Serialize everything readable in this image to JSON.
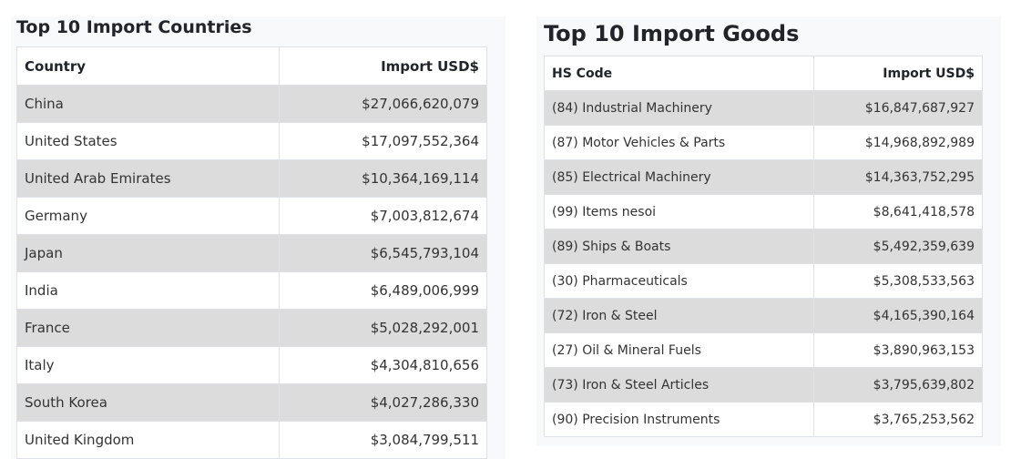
{
  "countries": {
    "title": "Top 10 Import Countries",
    "col_country": "Country",
    "col_value": "Import USD$",
    "rows": [
      {
        "name": "China",
        "value": "$27,066,620,079"
      },
      {
        "name": "United States",
        "value": "$17,097,552,364"
      },
      {
        "name": "United Arab Emirates",
        "value": "$10,364,169,114"
      },
      {
        "name": "Germany",
        "value": "$7,003,812,674"
      },
      {
        "name": "Japan",
        "value": "$6,545,793,104"
      },
      {
        "name": "India",
        "value": "$6,489,006,999"
      },
      {
        "name": "France",
        "value": "$5,028,292,001"
      },
      {
        "name": "Italy",
        "value": "$4,304,810,656"
      },
      {
        "name": "South Korea",
        "value": "$4,027,286,330"
      },
      {
        "name": "United Kingdom",
        "value": "$3,084,799,511"
      }
    ]
  },
  "goods": {
    "title": "Top 10 Import Goods",
    "col_code": "HS Code",
    "col_value": "Import USD$",
    "rows": [
      {
        "name": "(84) Industrial Machinery",
        "value": "$16,847,687,927"
      },
      {
        "name": "(87) Motor Vehicles & Parts",
        "value": "$14,968,892,989"
      },
      {
        "name": "(85) Electrical Machinery",
        "value": "$14,363,752,295"
      },
      {
        "name": "(99) Items nesoi",
        "value": "$8,641,418,578"
      },
      {
        "name": "(89) Ships & Boats",
        "value": "$5,492,359,639"
      },
      {
        "name": "(30) Pharmaceuticals",
        "value": "$5,308,533,563"
      },
      {
        "name": "(72) Iron & Steel",
        "value": "$4,165,390,164"
      },
      {
        "name": "(27) Oil & Mineral Fuels",
        "value": "$3,890,963,153"
      },
      {
        "name": "(73) Iron & Steel Articles",
        "value": "$3,795,639,802"
      },
      {
        "name": "(90) Precision Instruments",
        "value": "$3,765,253,562"
      }
    ]
  }
}
